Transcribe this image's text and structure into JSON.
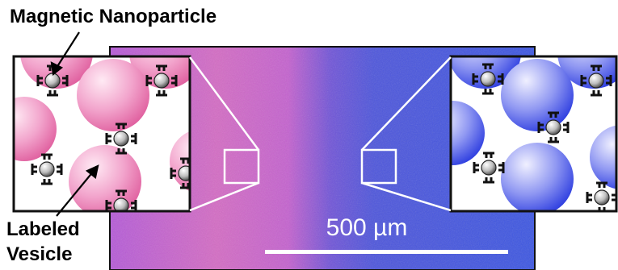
{
  "labels": {
    "top": "Magnetic Nanoparticle",
    "bottom_line1": "Labeled",
    "bottom_line2": "Vesicle",
    "scale": "500 µm"
  },
  "colors": {
    "pink": "#e56bb5",
    "pink_light": "#ffe0ef",
    "blue": "#3a44e8",
    "blue_light": "#dcdcff",
    "micro_left": "#c75fcf",
    "micro_right": "#4a5be0"
  }
}
